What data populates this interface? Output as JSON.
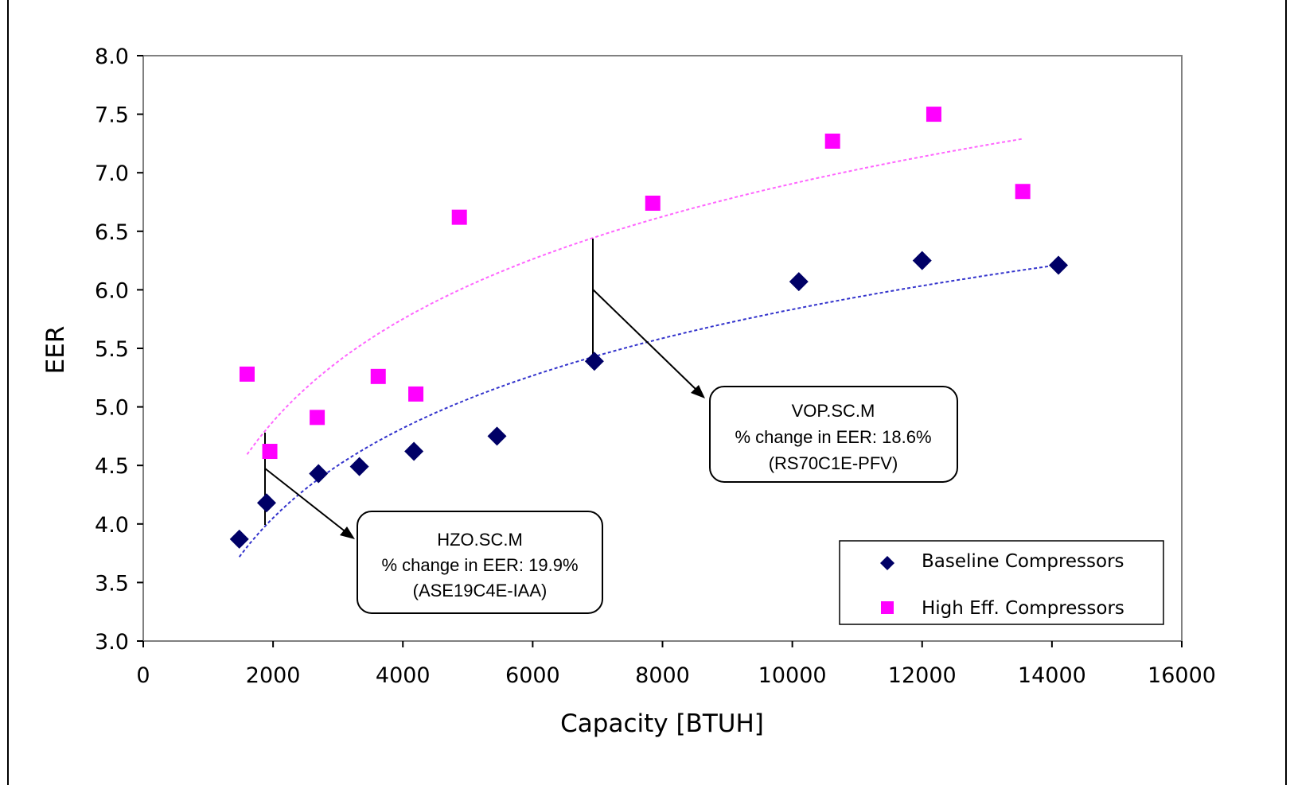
{
  "chart_data": {
    "type": "scatter",
    "title": "",
    "xlabel": "Capacity [BTUH]",
    "ylabel": "EER",
    "xlim": [
      0,
      16000
    ],
    "ylim": [
      3.0,
      8.0
    ],
    "x_ticks": [
      "0",
      "2000",
      "4000",
      "6000",
      "8000",
      "10000",
      "12000",
      "14000",
      "16000"
    ],
    "y_ticks": [
      "3.0",
      "3.5",
      "4.0",
      "4.5",
      "5.0",
      "5.5",
      "6.0",
      "6.5",
      "7.0",
      "7.5",
      "8.0"
    ],
    "grid": false,
    "legend_position": "bottom-right",
    "series": [
      {
        "name": "Baseline Compressors",
        "marker": "diamond",
        "color": "#000066",
        "trendline_color": "#3333cc",
        "points": [
          {
            "x": 1480,
            "y": 3.87
          },
          {
            "x": 1900,
            "y": 4.18
          },
          {
            "x": 2700,
            "y": 4.43
          },
          {
            "x": 3330,
            "y": 4.49
          },
          {
            "x": 4170,
            "y": 4.62
          },
          {
            "x": 5450,
            "y": 4.75
          },
          {
            "x": 6950,
            "y": 5.39
          },
          {
            "x": 10100,
            "y": 6.07
          },
          {
            "x": 12000,
            "y": 6.25
          },
          {
            "x": 14100,
            "y": 6.21
          }
        ]
      },
      {
        "name": "High Eff. Compressors",
        "marker": "square",
        "color": "#ff00ff",
        "trendline_color": "#ff66ff",
        "points": [
          {
            "x": 1600,
            "y": 5.28
          },
          {
            "x": 1950,
            "y": 4.62
          },
          {
            "x": 2680,
            "y": 4.91
          },
          {
            "x": 3620,
            "y": 5.26
          },
          {
            "x": 4200,
            "y": 5.11
          },
          {
            "x": 4870,
            "y": 6.62
          },
          {
            "x": 7850,
            "y": 6.74
          },
          {
            "x": 10620,
            "y": 7.27
          },
          {
            "x": 12180,
            "y": 7.5
          },
          {
            "x": 13550,
            "y": 6.84
          }
        ]
      }
    ],
    "annotations": [
      {
        "lines": [
          "VOP.SC.M",
          "% change in EER: 18.6%",
          "(RS70C1E-PFV)"
        ]
      },
      {
        "lines": [
          "HZO.SC.M",
          "% change in EER: 19.9%",
          "(ASE19C4E-IAA)"
        ]
      }
    ]
  }
}
